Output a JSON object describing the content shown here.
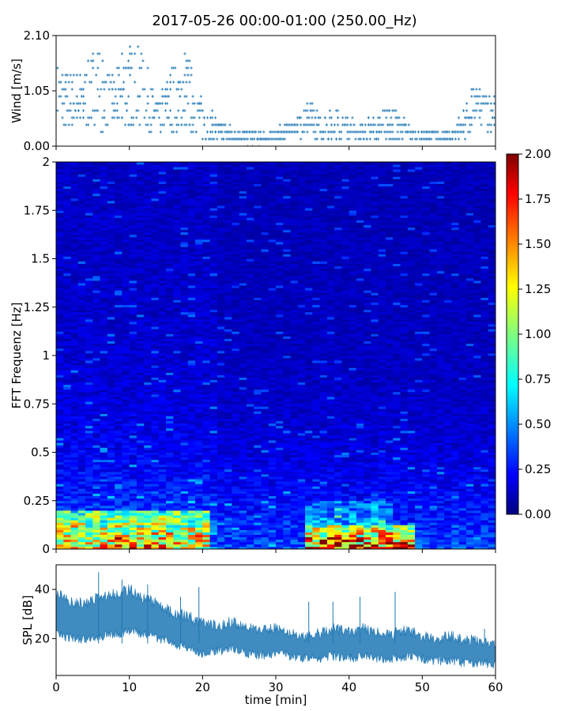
{
  "figure": {
    "title": "2017-05-26 00:00-01:00 (250.00_Hz)"
  },
  "colors": {
    "series": "#1f77b4",
    "background": "#ffffff"
  },
  "colorbar": {
    "colormap": "jet",
    "range": [
      0,
      2
    ],
    "ticks": [
      "0.00",
      "0.25",
      "0.50",
      "0.75",
      "1.00",
      "1.25",
      "1.50",
      "1.75",
      "2.00"
    ]
  },
  "chart_data": [
    {
      "type": "scatter",
      "xlabel": "",
      "ylabel": "Wind [m/s]",
      "xlim": [
        0,
        60
      ],
      "ylim": [
        0,
        2.1
      ],
      "yticks": [
        "0.00",
        "1.05",
        "2.10"
      ],
      "marker": "plus",
      "envelope": {
        "x": [
          0,
          2,
          4,
          5.5,
          7,
          8,
          9,
          10,
          11,
          12,
          13,
          14,
          15,
          16,
          17,
          17.5,
          18,
          19,
          20,
          22,
          24,
          26,
          28,
          30,
          32,
          33,
          34,
          35,
          36,
          38,
          40,
          42,
          44,
          46,
          48,
          50,
          52,
          54,
          56,
          57,
          58,
          59,
          60
        ],
        "ymax": [
          1.6,
          1.4,
          1.5,
          2.0,
          1.5,
          1.3,
          1.8,
          1.9,
          1.9,
          1.7,
          1.2,
          0.8,
          1.3,
          1.6,
          1.5,
          1.9,
          1.7,
          1.4,
          0.9,
          0.5,
          0.35,
          0.3,
          0.25,
          0.3,
          0.45,
          0.55,
          0.9,
          0.8,
          0.6,
          0.7,
          0.5,
          0.45,
          0.6,
          0.8,
          0.4,
          0.3,
          0.3,
          0.25,
          0.8,
          1.2,
          1.0,
          1.1,
          0.9
        ],
        "ymin": [
          0.3,
          0.3,
          0.3,
          0.3,
          0.3,
          0.3,
          0.3,
          0.3,
          0.3,
          0.3,
          0.2,
          0.2,
          0.3,
          0.3,
          0.3,
          0.3,
          0.2,
          0.2,
          0.1,
          0.1,
          0.1,
          0.05,
          0.05,
          0.1,
          0.2,
          0.2,
          0.2,
          0.2,
          0.1,
          0.1,
          0.1,
          0.1,
          0.1,
          0.1,
          0.1,
          0.1,
          0.1,
          0.1,
          0.2,
          0.3,
          0.3,
          0.3,
          0.3
        ]
      }
    },
    {
      "type": "heatmap",
      "xlabel": "",
      "ylabel": "FFT Frequenz [Hz]",
      "xlim": [
        0,
        60
      ],
      "ylim": [
        0,
        2
      ],
      "yticks": [
        "0",
        "0.25",
        "0.5",
        "0.75",
        "1",
        "1.25",
        "1.5",
        "1.75",
        "2"
      ],
      "zrange": [
        0,
        2
      ],
      "high_energy_bands": [
        {
          "x": [
            0,
            21
          ],
          "freq_hz": [
            0,
            0.2
          ],
          "level": 1.4
        },
        {
          "x": [
            34,
            49
          ],
          "freq_hz": [
            0,
            0.12
          ],
          "level": 1.7
        },
        {
          "x": [
            34,
            46
          ],
          "freq_hz": [
            0.12,
            0.25
          ],
          "level": 0.7
        }
      ]
    },
    {
      "type": "area",
      "xlabel": "time [min]",
      "ylabel": "SPL [dB]",
      "xlim": [
        0,
        60
      ],
      "ylim": [
        5,
        50
      ],
      "yticks": [
        "20",
        "40"
      ],
      "xticks": [
        "0",
        "10",
        "20",
        "30",
        "40",
        "50",
        "60"
      ],
      "x": [
        0,
        2,
        4,
        6,
        8,
        10,
        12,
        14,
        16,
        18,
        20,
        22,
        24,
        26,
        28,
        30,
        32,
        34,
        36,
        38,
        40,
        42,
        44,
        46,
        48,
        50,
        52,
        54,
        56,
        58,
        60
      ],
      "upper": [
        38,
        35,
        34,
        37,
        38,
        40,
        36,
        34,
        30,
        29,
        26,
        25,
        27,
        24,
        24,
        24,
        22,
        20,
        22,
        24,
        22,
        24,
        22,
        22,
        23,
        21,
        20,
        21,
        19,
        19,
        18
      ],
      "lower": [
        22,
        20,
        20,
        21,
        22,
        23,
        22,
        20,
        18,
        16,
        14,
        15,
        16,
        14,
        13,
        14,
        13,
        12,
        12,
        13,
        12,
        13,
        12,
        12,
        13,
        12,
        11,
        11,
        10,
        10,
        10
      ]
    }
  ]
}
